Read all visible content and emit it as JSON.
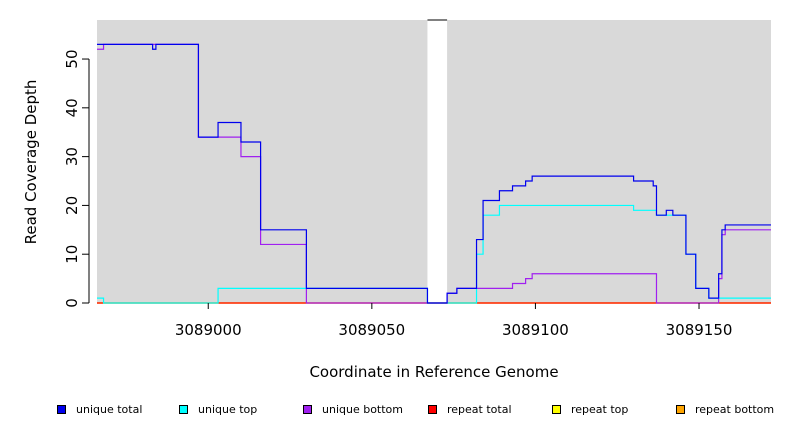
{
  "chart_data": {
    "type": "line",
    "step": true,
    "xlabel": "Coordinate in Reference Genome",
    "ylabel": "Read Coverage Depth",
    "xlim": [
      3088966,
      3089172
    ],
    "ylim": [
      0,
      58
    ],
    "x_ticks": [
      3089000,
      3089050,
      3089100,
      3089150
    ],
    "x_tick_labels": [
      "3089000",
      "3089050",
      "3089100",
      "3089150"
    ],
    "y_ticks": [
      0,
      10,
      20,
      30,
      40,
      50
    ],
    "y_tick_labels": [
      "0",
      "10",
      "20",
      "30",
      "40",
      "50"
    ],
    "background": "#d9d9d9",
    "gap_region": [
      3089067,
      3089073
    ],
    "legend_position": "bottom",
    "series": [
      {
        "name": "unique total",
        "color": "#0000ee",
        "points": [
          [
            3088966,
            53
          ],
          [
            3088983,
            52
          ],
          [
            3088984,
            53
          ],
          [
            3088997,
            34
          ],
          [
            3089003,
            37
          ],
          [
            3089010,
            33
          ],
          [
            3089016,
            15
          ],
          [
            3089030,
            3
          ],
          [
            3089067,
            0
          ],
          [
            3089073,
            2
          ],
          [
            3089076,
            3
          ],
          [
            3089082,
            13
          ],
          [
            3089084,
            21
          ],
          [
            3089089,
            23
          ],
          [
            3089093,
            24
          ],
          [
            3089097,
            25
          ],
          [
            3089099,
            26
          ],
          [
            3089130,
            25
          ],
          [
            3089136,
            24
          ],
          [
            3089137,
            18
          ],
          [
            3089140,
            19
          ],
          [
            3089142,
            18
          ],
          [
            3089146,
            10
          ],
          [
            3089149,
            3
          ],
          [
            3089153,
            1
          ],
          [
            3089156,
            6
          ],
          [
            3089157,
            15
          ],
          [
            3089158,
            16
          ],
          [
            3089172,
            16
          ]
        ]
      },
      {
        "name": "unique top",
        "color": "#00ffff",
        "points": [
          [
            3088966,
            1
          ],
          [
            3088968,
            0
          ],
          [
            3089003,
            3
          ],
          [
            3089030,
            3
          ],
          [
            3089067,
            0
          ],
          [
            3089073,
            0
          ],
          [
            3089082,
            10
          ],
          [
            3089084,
            18
          ],
          [
            3089089,
            20
          ],
          [
            3089130,
            19
          ],
          [
            3089137,
            18
          ],
          [
            3089146,
            10
          ],
          [
            3089149,
            3
          ],
          [
            3089153,
            1
          ],
          [
            3089157,
            1
          ],
          [
            3089172,
            1
          ]
        ]
      },
      {
        "name": "unique bottom",
        "color": "#a020f0",
        "points": [
          [
            3088966,
            52
          ],
          [
            3088968,
            53
          ],
          [
            3088997,
            34
          ],
          [
            3089010,
            30
          ],
          [
            3089016,
            12
          ],
          [
            3089030,
            0
          ],
          [
            3089067,
            0
          ],
          [
            3089073,
            2
          ],
          [
            3089076,
            3
          ],
          [
            3089093,
            4
          ],
          [
            3089097,
            5
          ],
          [
            3089099,
            6
          ],
          [
            3089137,
            0
          ],
          [
            3089156,
            5
          ],
          [
            3089157,
            14
          ],
          [
            3089158,
            15
          ],
          [
            3089172,
            15
          ]
        ]
      },
      {
        "name": "repeat total",
        "color": "#ff0000",
        "points": [
          [
            3088966,
            0
          ],
          [
            3089172,
            0
          ]
        ]
      },
      {
        "name": "repeat top",
        "color": "#ffff00",
        "points": [
          [
            3088966,
            0
          ],
          [
            3089172,
            0
          ]
        ]
      },
      {
        "name": "repeat bottom",
        "color": "#ffa500",
        "points": [
          [
            3088966,
            0
          ],
          [
            3089172,
            0
          ]
        ]
      }
    ]
  }
}
